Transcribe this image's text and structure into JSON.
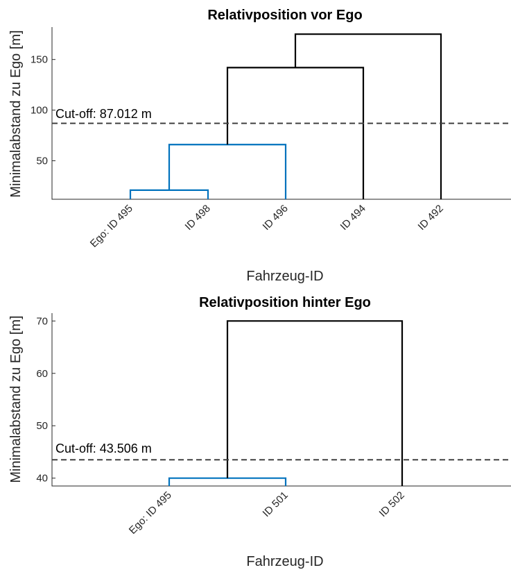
{
  "colors": {
    "cluster": "#0072BD",
    "link": "#000000",
    "cutoff": "#404040"
  },
  "chart_data": [
    {
      "type": "dendrogram",
      "title": "Relativposition vor Ego",
      "xlabel": "Fahrzeug-ID",
      "ylabel": "Minimalabstand zu Ego [m]",
      "ylim": [
        12,
        182
      ],
      "yticks": [
        50,
        100,
        150
      ],
      "leaves": [
        "Ego: ID 495",
        "ID 498",
        "ID 496",
        "ID 494",
        "ID 492"
      ],
      "cutoff": {
        "value": 87.012,
        "label": "Cut-off: 87.012 m"
      },
      "links": [
        {
          "left": 0,
          "right": 1,
          "height": 21,
          "color": "cluster"
        },
        {
          "left": "0.5",
          "right": 2,
          "height": 66,
          "color": "cluster"
        },
        {
          "left": "1.25",
          "right": 3,
          "height": 142,
          "color": "link"
        },
        {
          "left": "2.125",
          "right": 4,
          "height": 175,
          "color": "link"
        }
      ]
    },
    {
      "type": "dendrogram",
      "title": "Relativposition hinter Ego",
      "xlabel": "Fahrzeug-ID",
      "ylabel": "Minimalabstand zu Ego [m]",
      "ylim": [
        38.5,
        71.5
      ],
      "yticks": [
        40,
        50,
        60,
        70
      ],
      "leaves": [
        "Ego: ID 495",
        "ID 501",
        "ID 502"
      ],
      "cutoff": {
        "value": 43.506,
        "label": "Cut-off: 43.506 m"
      },
      "links": [
        {
          "left": 0,
          "right": 1,
          "height": 40,
          "color": "cluster"
        },
        {
          "left": "0.5",
          "right": 2,
          "height": 70,
          "color": "link"
        }
      ]
    }
  ]
}
